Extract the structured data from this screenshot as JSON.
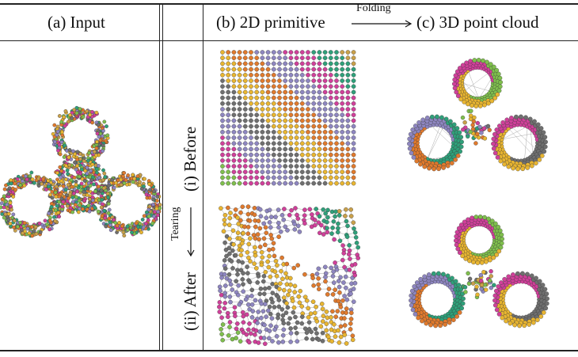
{
  "header": {
    "col_a": "(a) Input",
    "col_b": "(b) 2D primitive",
    "arrow_label": "Folding",
    "col_c": "(c) 3D point cloud"
  },
  "rows": {
    "before_label": "(i) Before",
    "after_label": "(ii) After",
    "tearing_label": "Tearing"
  },
  "palette": [
    "#e8b531",
    "#d0409a",
    "#8e86c0",
    "#7fbf4d",
    "#e07a2d",
    "#6f6f6f",
    "#2fa07a",
    "#c9a04a"
  ]
}
